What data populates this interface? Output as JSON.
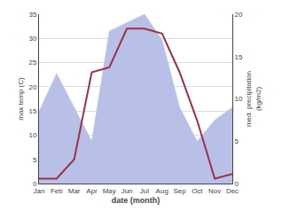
{
  "chart_data": {
    "type": "line",
    "categories": [
      "Jan",
      "Feb",
      "Mar",
      "Apr",
      "May",
      "Jun",
      "Jul",
      "Aug",
      "Sep",
      "Oct",
      "Nov",
      "Dec"
    ],
    "series": [
      {
        "type": "area",
        "axis": "y2",
        "color": "#b8c0e8",
        "values": [
          8.5,
          13,
          9,
          5,
          18,
          19,
          20,
          17,
          9,
          5,
          7.5,
          9
        ]
      },
      {
        "type": "line",
        "color": "#993344",
        "values": [
          1,
          1,
          5,
          23,
          24,
          32,
          32,
          31,
          23,
          13,
          1,
          2
        ]
      }
    ],
    "xlabel": "date (month)",
    "ylabel": "max temp (C)",
    "y2label": "med. precipitation\n(kg/m2)",
    "ylim": [
      0,
      35
    ],
    "yticks": [
      0,
      5,
      10,
      15,
      20,
      25,
      30,
      35
    ],
    "y2lim": [
      0,
      20
    ],
    "y2ticks": [
      0,
      5,
      10,
      15,
      20
    ],
    "grid": true
  }
}
